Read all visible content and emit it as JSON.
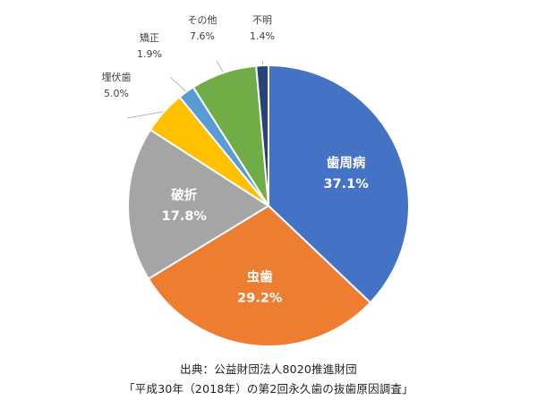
{
  "chart_data": {
    "type": "pie",
    "start_angle_deg": 0,
    "direction": "clockwise",
    "slices": [
      {
        "label": "歯周病",
        "value": 37.1,
        "value_label": "37.1%",
        "color": "#4472C4",
        "label_position": "inside"
      },
      {
        "label": "虫歯",
        "value": 29.2,
        "value_label": "29.2%",
        "color": "#ED7D31",
        "label_position": "inside"
      },
      {
        "label": "破折",
        "value": 17.8,
        "value_label": "17.8%",
        "color": "#A5A5A5",
        "label_position": "inside"
      },
      {
        "label": "埋伏歯",
        "value": 5.0,
        "value_label": "5.0%",
        "color": "#FFC000",
        "label_position": "outside"
      },
      {
        "label": "矯正",
        "value": 1.9,
        "value_label": "1.9%",
        "color": "#5B9BD5",
        "label_position": "outside"
      },
      {
        "label": "その他",
        "value": 7.6,
        "value_label": "7.6%",
        "color": "#70AD47",
        "label_position": "outside"
      },
      {
        "label": "不明",
        "value": 1.4,
        "value_label": "1.4%",
        "color": "#264478",
        "label_position": "outside"
      }
    ],
    "legend": "none",
    "source_lines": [
      "出典：公益財団法人8020推進財団",
      "「平成30年（2018年）の第2回永久歯の抜歯原因調査」"
    ]
  }
}
